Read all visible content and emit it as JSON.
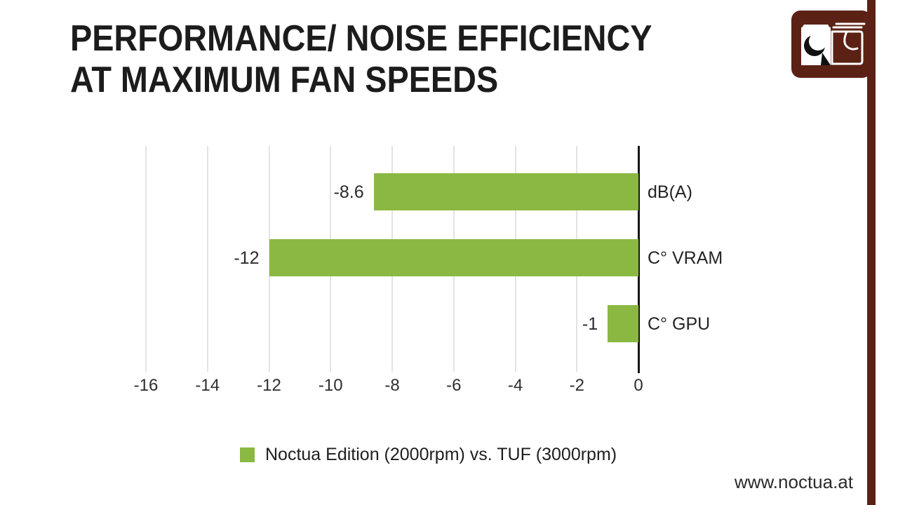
{
  "page": {
    "title_line1": "PERFORMANCE/ NOISE EFFICIENCY",
    "title_line2": "AT MAXIMUM FAN SPEEDS",
    "watermark": "www.noctua.at"
  },
  "legend": {
    "label": "Noctua Edition (2000rpm) vs. TUF (3000rpm)",
    "swatch_color": "#8bb843"
  },
  "colors": {
    "bar_green": "#8bb843",
    "brand_brown": "#5c2115",
    "gridline": "#e3e3e3",
    "axis": "#161616",
    "text": "#1c1c1c"
  },
  "icons": {
    "logo": "noctua-owl-fan-logo"
  },
  "chart_data": {
    "type": "bar",
    "orientation": "horizontal",
    "title": "PERFORMANCE/ NOISE EFFICIENCY AT MAXIMUM FAN SPEEDS",
    "categories": [
      "dB(A)",
      "C° VRAM",
      "C° GPU"
    ],
    "series": [
      {
        "name": "Noctua Edition (2000rpm) vs. TUF (3000rpm)",
        "values": [
          -8.6,
          -12,
          -1
        ],
        "value_labels": [
          "-8.6",
          "-12",
          "-1"
        ],
        "color": "#8bb843"
      }
    ],
    "xlabel": "",
    "ylabel": "",
    "xlim": [
      -16,
      0
    ],
    "x_ticks": [
      -16,
      -14,
      -12,
      -10,
      -8,
      -6,
      -4,
      -2,
      0
    ],
    "grid": true,
    "legend_position": "bottom"
  }
}
